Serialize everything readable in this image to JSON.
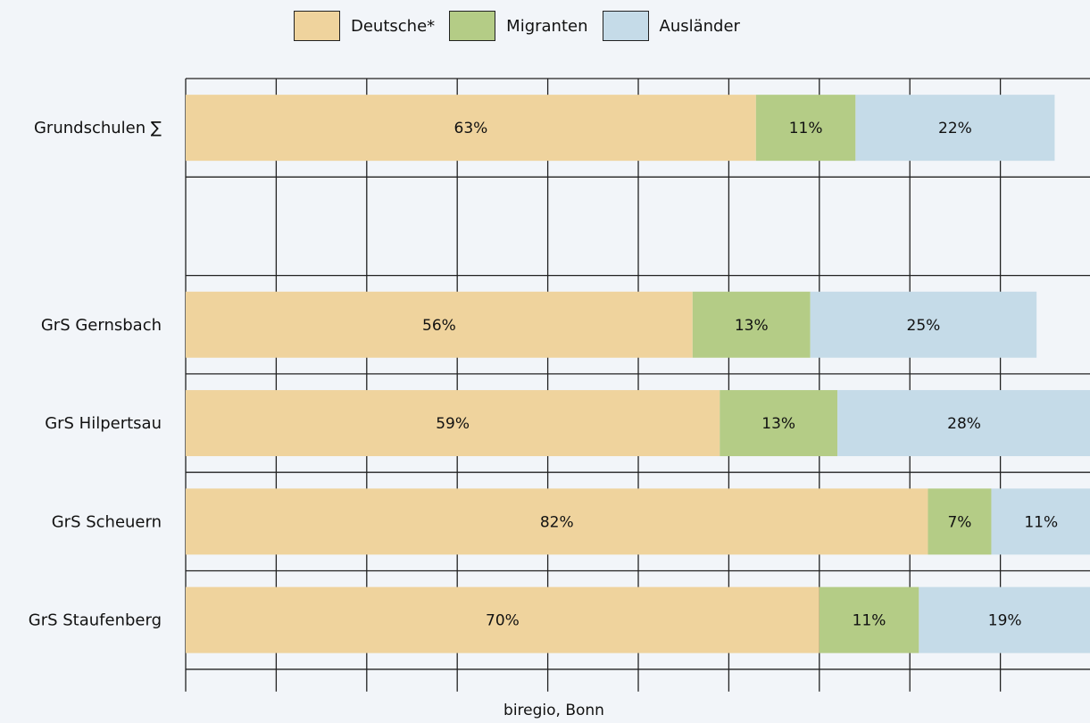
{
  "legend": [
    {
      "label": "Deutsche*",
      "color": "#efd39d"
    },
    {
      "label": "Migranten",
      "color": "#b4cc86"
    },
    {
      "label": "Ausländer",
      "color": "#c5dbe8"
    }
  ],
  "source": "biregio, Bonn",
  "chart_data": {
    "type": "bar",
    "orientation": "horizontal",
    "stacked": true,
    "categories": [
      "Grundschulen ∑",
      "",
      "GrS Gernsbach",
      "GrS Hilpertsau",
      "GrS Scheuern",
      "GrS Staufenberg"
    ],
    "series": [
      {
        "name": "Deutsche*",
        "color": "#efd39d",
        "values": [
          63,
          null,
          56,
          59,
          82,
          70
        ],
        "labels": [
          "63%",
          "",
          "56%",
          "59%",
          "82%",
          "70%"
        ]
      },
      {
        "name": "Migranten",
        "color": "#b4cc86",
        "values": [
          11,
          null,
          13,
          13,
          7,
          11
        ],
        "labels": [
          "11%",
          "",
          "13%",
          "13%",
          "7%",
          "11%"
        ]
      },
      {
        "name": "Ausländer",
        "color": "#c5dbe8",
        "values": [
          22,
          null,
          25,
          28,
          11,
          19
        ],
        "labels": [
          "22%",
          "",
          "25%",
          "28%",
          "11%",
          "19%"
        ]
      }
    ],
    "xlim": [
      0,
      100
    ],
    "grid": true,
    "legend_position": "top"
  }
}
